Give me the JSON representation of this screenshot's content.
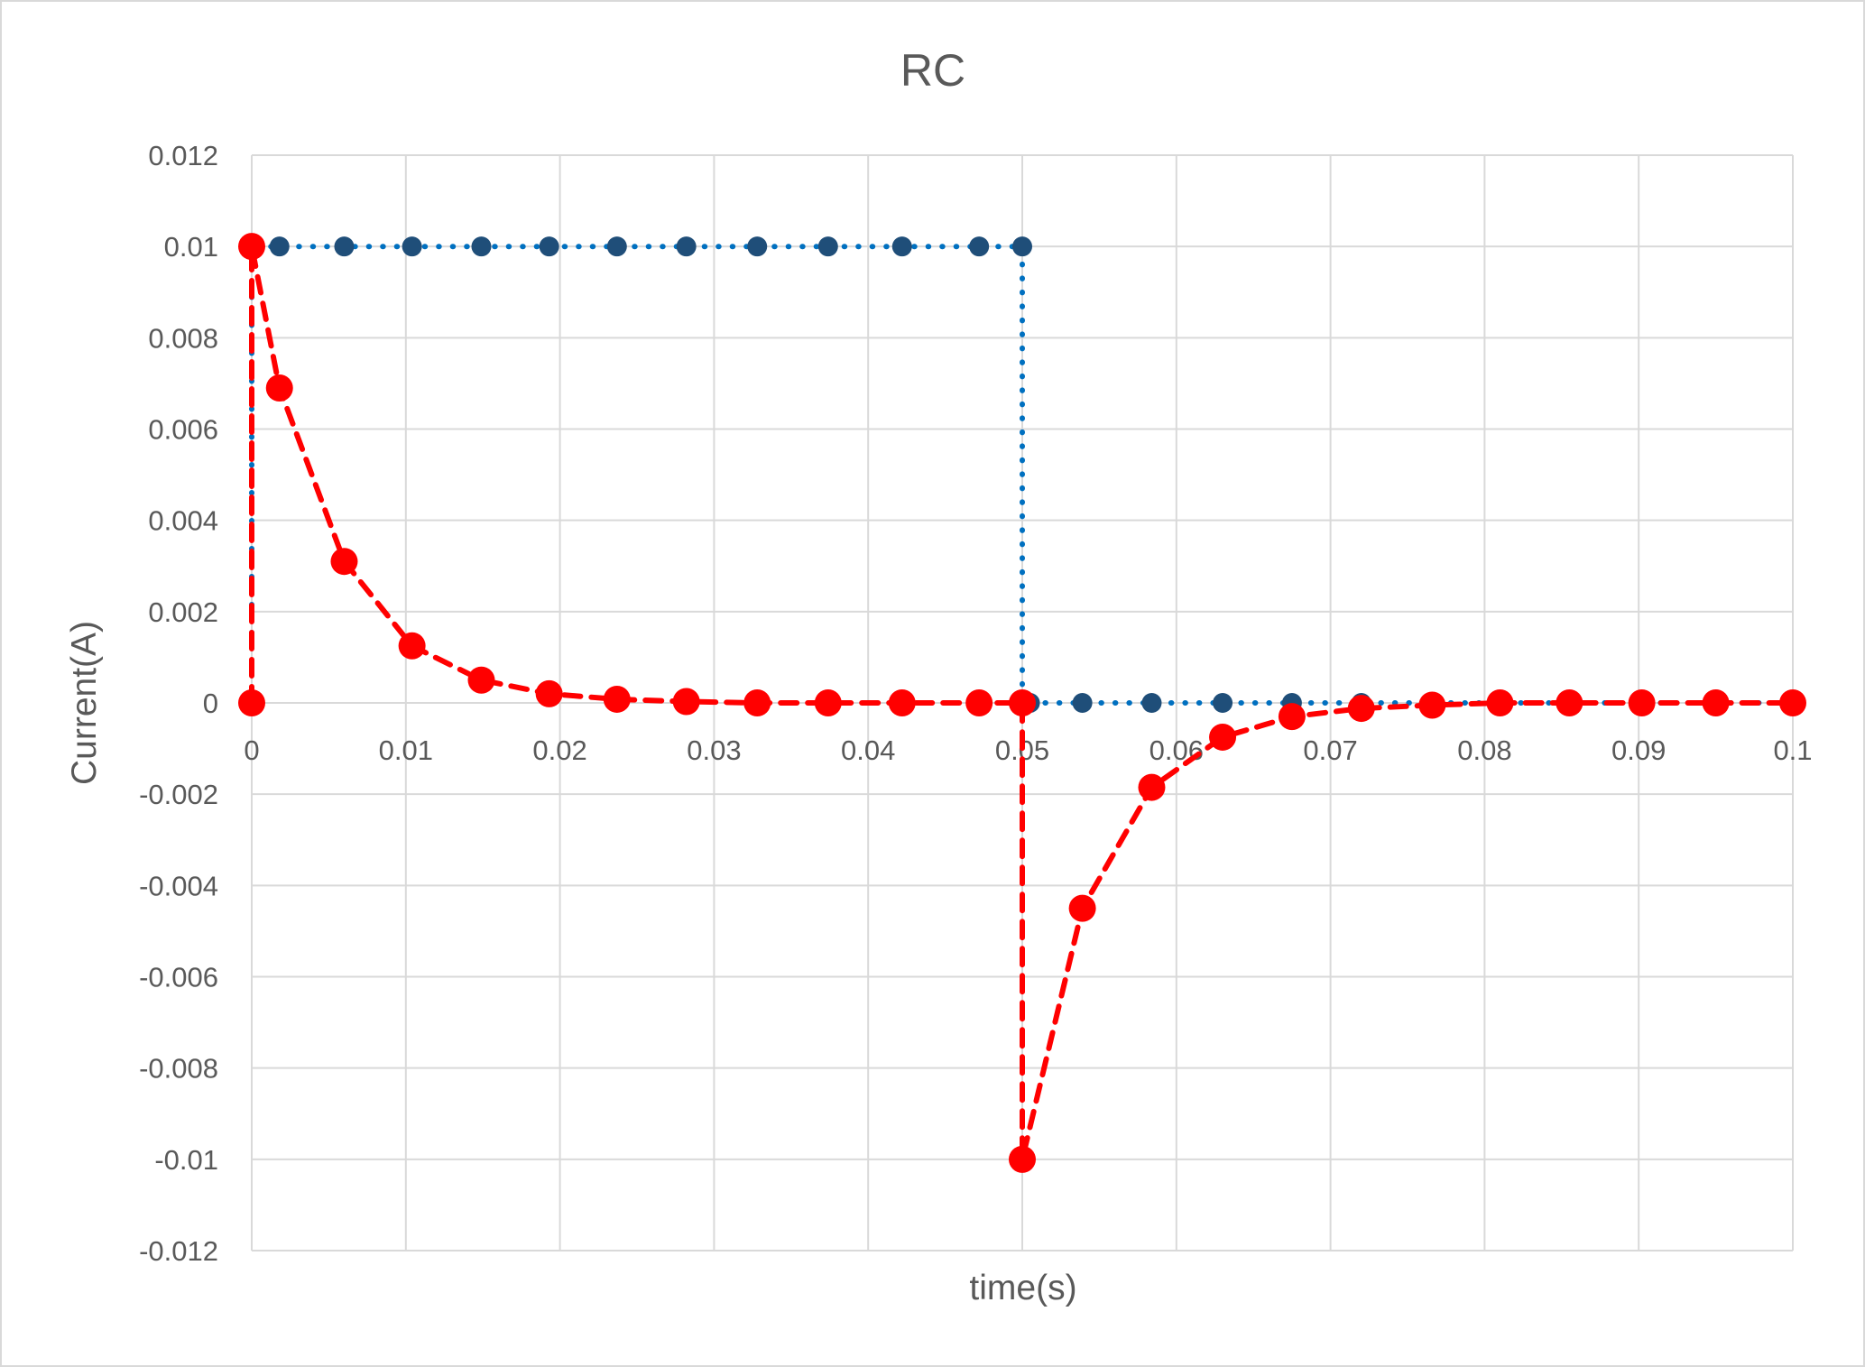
{
  "chart_data": {
    "type": "scatter",
    "title": "RC",
    "xlabel": "time(s)",
    "ylabel": "Current(A)",
    "xlim": [
      0,
      0.1
    ],
    "ylim": [
      -0.012,
      0.012
    ],
    "xticks": [
      0,
      0.01,
      0.02,
      0.03,
      0.04,
      0.05,
      0.06,
      0.07,
      0.08,
      0.09,
      0.1
    ],
    "xtick_labels": [
      "0",
      "0.01",
      "0.02",
      "0.03",
      "0.04",
      "0.05",
      "0.06",
      "0.07",
      "0.08",
      "0.09",
      "0.1"
    ],
    "yticks": [
      0.012,
      0.01,
      0.008,
      0.006,
      0.004,
      0.002,
      0,
      -0.002,
      -0.004,
      -0.006,
      -0.008,
      -0.01,
      -0.012
    ],
    "ytick_labels": [
      "0.012",
      "0.01",
      "0.008",
      "0.006",
      "0.004",
      "0.002",
      "0",
      "-0.002",
      "-0.004",
      "-0.006",
      "-0.008",
      "-0.01",
      "-0.012"
    ],
    "grid": true,
    "legend": "none",
    "series": [
      {
        "color": "#1f4e79",
        "line_color": "#0070c0",
        "line_style": "dotted",
        "x": [
          0,
          0,
          0.0018,
          0.006,
          0.0104,
          0.0149,
          0.0193,
          0.0237,
          0.0282,
          0.0328,
          0.0374,
          0.0422,
          0.0472,
          0.05,
          0.05,
          0.0505,
          0.0539,
          0.0584,
          0.063,
          0.0675,
          0.072,
          0.0766,
          0.081,
          0.0855,
          0.0902,
          0.095,
          0.1
        ],
        "y": [
          0,
          0.01,
          0.01,
          0.01,
          0.01,
          0.01,
          0.01,
          0.01,
          0.01,
          0.01,
          0.01,
          0.01,
          0.01,
          0.01,
          0,
          0,
          0,
          0,
          0,
          0,
          0,
          0,
          0,
          0,
          0,
          0,
          0
        ]
      },
      {
        "color": "#ff0000",
        "line_color": "#ff0000",
        "line_style": "dashed",
        "x": [
          0,
          0,
          0.0018,
          0.006,
          0.0104,
          0.0149,
          0.0193,
          0.0237,
          0.0282,
          0.0328,
          0.0374,
          0.0422,
          0.0472,
          0.05,
          0.05,
          0.0539,
          0.0584,
          0.063,
          0.0675,
          0.072,
          0.0766,
          0.081,
          0.0855,
          0.0902,
          0.095,
          0.1
        ],
        "y": [
          0,
          0.01,
          0.0069,
          0.0031,
          0.00125,
          0.0005,
          0.0002,
          8e-05,
          3e-05,
          0,
          0,
          0,
          0,
          0,
          -0.01,
          -0.0045,
          -0.00185,
          -0.00075,
          -0.0003,
          -0.00012,
          -5e-05,
          0,
          0,
          0,
          0,
          0
        ]
      }
    ]
  }
}
